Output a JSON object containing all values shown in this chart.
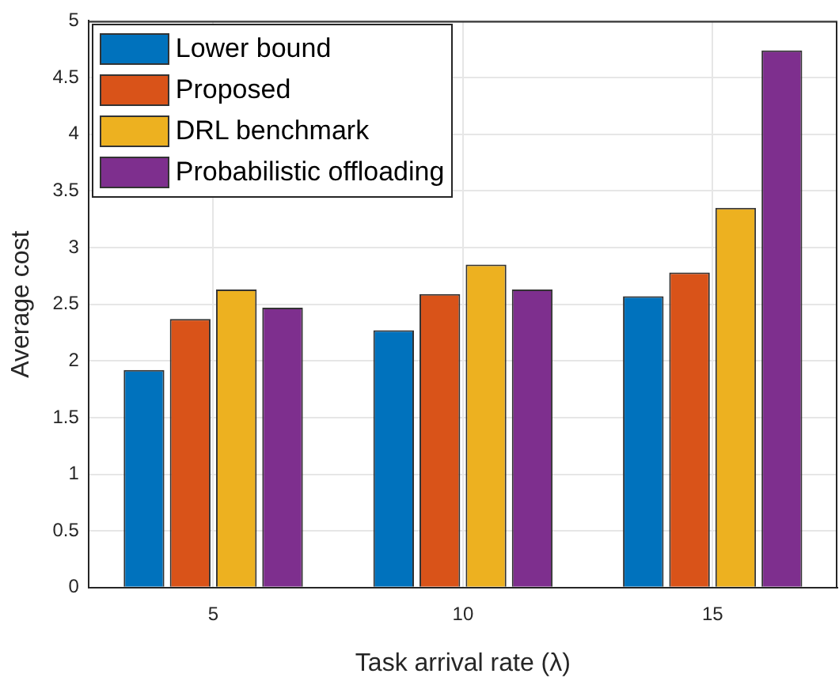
{
  "chart_data": {
    "type": "bar",
    "xlabel": "Task arrival rate (λ)",
    "ylabel": "Average cost",
    "categories": [
      "5",
      "10",
      "15"
    ],
    "series": [
      {
        "name": "Lower bound",
        "color": "#0072bd",
        "values": [
          1.92,
          2.27,
          2.57
        ]
      },
      {
        "name": "Proposed",
        "color": "#d95319",
        "values": [
          2.37,
          2.59,
          2.78
        ]
      },
      {
        "name": "DRL benchmark",
        "color": "#edb120",
        "values": [
          2.63,
          2.85,
          3.35
        ]
      },
      {
        "name": "Probabilistic offloading",
        "color": "#7e2f8e",
        "values": [
          2.47,
          2.63,
          4.74
        ]
      }
    ],
    "ylim": [
      0,
      5
    ],
    "yticks": [
      0,
      {
        "value": 0.5,
        "label": "0.5"
      },
      1,
      {
        "value": 1.5,
        "label": "1.5"
      },
      2,
      {
        "value": 2.5,
        "label": "2.5"
      },
      3,
      {
        "value": 3.5,
        "label": "3.5"
      },
      4,
      {
        "value": 4.5,
        "label": "4.5"
      },
      5
    ],
    "grid": true,
    "legend": "top left"
  }
}
